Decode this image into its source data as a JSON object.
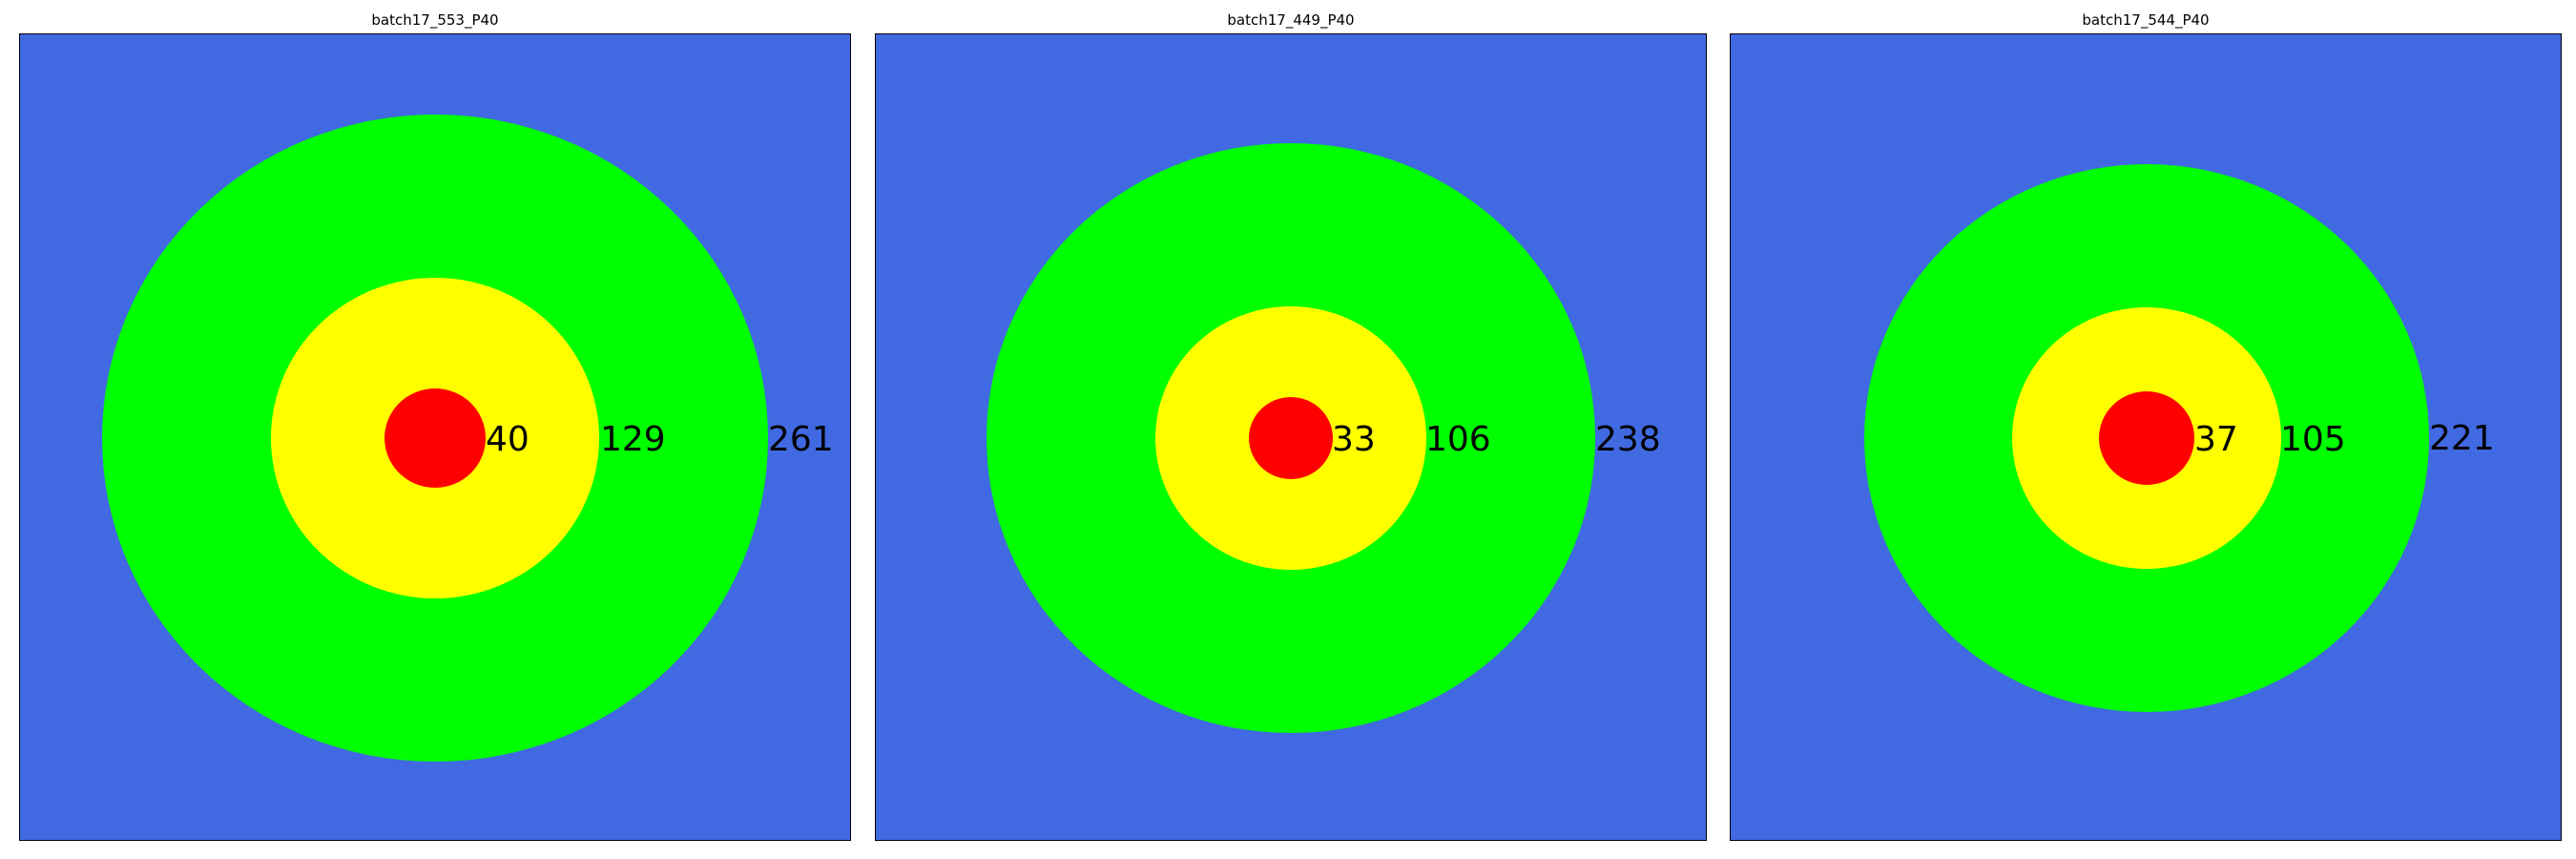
{
  "colors": {
    "background": "#4169E1",
    "outer_ring": "#00FF00",
    "middle_ring": "#FFFF00",
    "inner_circle": "#FF0000"
  },
  "panels": [
    {
      "title": "batch17_553_P40",
      "values": {
        "inner": "40",
        "middle": "129",
        "outer": "261"
      }
    },
    {
      "title": "batch17_449_P40",
      "values": {
        "inner": "33",
        "middle": "106",
        "outer": "238"
      }
    },
    {
      "title": "batch17_544_P40",
      "values": {
        "inner": "37",
        "middle": "105",
        "outer": "221"
      }
    }
  ]
}
